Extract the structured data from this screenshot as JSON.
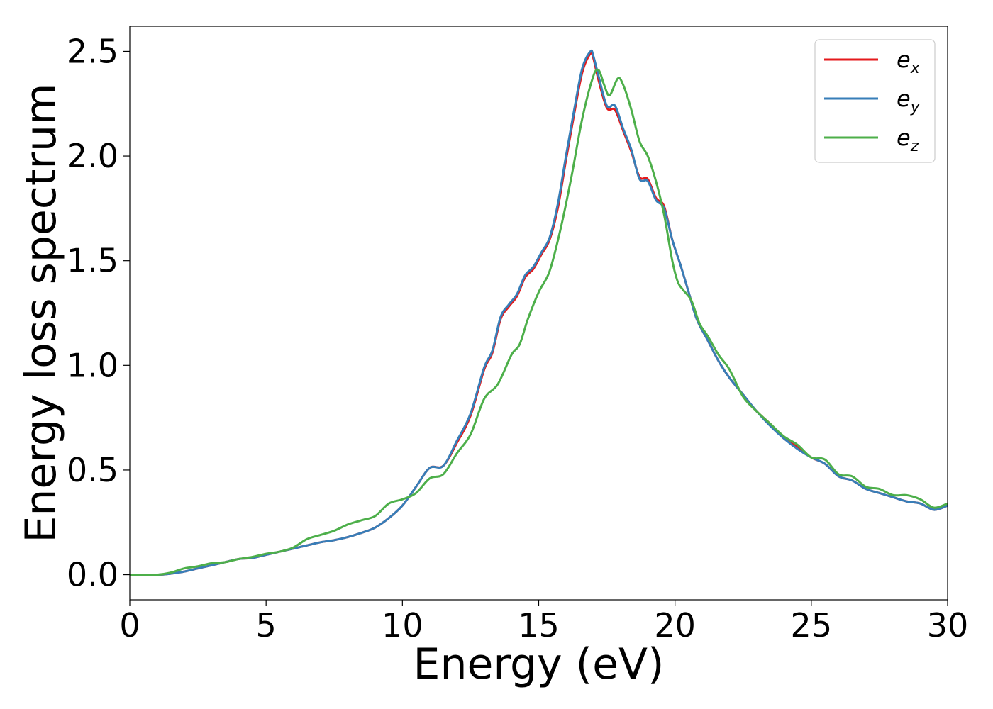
{
  "chart_data": {
    "type": "line",
    "title": "",
    "xlabel": "Energy (eV)",
    "ylabel": "Energy loss spectrum",
    "xlim": [
      0,
      30
    ],
    "ylim": [
      -0.12,
      2.62
    ],
    "xticks": [
      0,
      5,
      10,
      15,
      20,
      25,
      30
    ],
    "xtick_labels": [
      "0",
      "5",
      "10",
      "15",
      "20",
      "25",
      "30"
    ],
    "yticks": [
      0.0,
      0.5,
      1.0,
      1.5,
      2.0,
      2.5
    ],
    "ytick_labels": [
      "0.0",
      "0.5",
      "1.0",
      "1.5",
      "2.0",
      "2.5"
    ],
    "grid": false,
    "legend_position": "top-right",
    "series": [
      {
        "name": "e_x",
        "legend_base": "e",
        "legend_sub": "x",
        "color": "#e41a1c",
        "x": [
          0,
          1,
          1.5,
          2,
          2.5,
          3,
          3.5,
          4,
          4.5,
          5,
          5.5,
          6,
          6.5,
          7,
          7.5,
          8,
          8.5,
          9,
          9.5,
          10,
          10.5,
          11,
          11.5,
          12,
          12.5,
          13,
          13.3,
          13.6,
          13.9,
          14.2,
          14.5,
          14.8,
          15.1,
          15.4,
          15.7,
          16.0,
          16.3,
          16.6,
          16.9,
          17.0,
          17.2,
          17.5,
          17.8,
          18.1,
          18.4,
          18.7,
          19.0,
          19.3,
          19.6,
          19.9,
          20.2,
          20.5,
          20.8,
          21.2,
          21.6,
          22,
          22.5,
          23,
          23.5,
          24,
          24.5,
          25,
          25.5,
          26,
          26.5,
          27,
          27.5,
          28,
          28.5,
          29,
          29.5,
          30
        ],
        "y": [
          0.0,
          0.0,
          0.005,
          0.015,
          0.03,
          0.045,
          0.06,
          0.075,
          0.08,
          0.095,
          0.11,
          0.125,
          0.14,
          0.155,
          0.165,
          0.18,
          0.2,
          0.225,
          0.27,
          0.33,
          0.42,
          0.51,
          0.52,
          0.63,
          0.76,
          0.98,
          1.06,
          1.22,
          1.28,
          1.33,
          1.42,
          1.46,
          1.53,
          1.6,
          1.75,
          1.98,
          2.2,
          2.4,
          2.49,
          2.47,
          2.36,
          2.23,
          2.22,
          2.12,
          2.02,
          1.9,
          1.89,
          1.8,
          1.76,
          1.6,
          1.48,
          1.35,
          1.22,
          1.12,
          1.02,
          0.94,
          0.86,
          0.78,
          0.72,
          0.65,
          0.61,
          0.56,
          0.53,
          0.47,
          0.45,
          0.41,
          0.39,
          0.37,
          0.35,
          0.34,
          0.31,
          0.33
        ]
      },
      {
        "name": "e_y",
        "legend_base": "e",
        "legend_sub": "y",
        "color": "#377eb8",
        "x": [
          0,
          1,
          1.5,
          2,
          2.5,
          3,
          3.5,
          4,
          4.5,
          5,
          5.5,
          6,
          6.5,
          7,
          7.5,
          8,
          8.5,
          9,
          9.5,
          10,
          10.5,
          11,
          11.5,
          12,
          12.5,
          13,
          13.3,
          13.6,
          13.9,
          14.2,
          14.5,
          14.8,
          15.1,
          15.4,
          15.7,
          16.0,
          16.3,
          16.6,
          16.9,
          17.0,
          17.2,
          17.5,
          17.8,
          18.1,
          18.4,
          18.7,
          19.0,
          19.3,
          19.6,
          19.9,
          20.2,
          20.5,
          20.8,
          21.2,
          21.6,
          22,
          22.5,
          23,
          23.5,
          24,
          24.5,
          25,
          25.5,
          26,
          26.5,
          27,
          27.5,
          28,
          28.5,
          29,
          29.5,
          30
        ],
        "y": [
          0.0,
          0.0,
          0.005,
          0.015,
          0.03,
          0.045,
          0.06,
          0.075,
          0.08,
          0.095,
          0.11,
          0.125,
          0.14,
          0.155,
          0.165,
          0.18,
          0.2,
          0.225,
          0.27,
          0.33,
          0.42,
          0.51,
          0.52,
          0.64,
          0.77,
          0.99,
          1.07,
          1.23,
          1.29,
          1.34,
          1.43,
          1.47,
          1.54,
          1.61,
          1.77,
          2.0,
          2.22,
          2.42,
          2.5,
          2.48,
          2.38,
          2.24,
          2.24,
          2.13,
          2.03,
          1.89,
          1.88,
          1.79,
          1.75,
          1.6,
          1.48,
          1.35,
          1.22,
          1.12,
          1.02,
          0.94,
          0.86,
          0.78,
          0.71,
          0.65,
          0.6,
          0.56,
          0.53,
          0.47,
          0.45,
          0.41,
          0.39,
          0.37,
          0.35,
          0.34,
          0.31,
          0.33
        ]
      },
      {
        "name": "e_z",
        "legend_base": "e",
        "legend_sub": "z",
        "color": "#4daf4a",
        "x": [
          0,
          1,
          1.5,
          2,
          2.5,
          3,
          3.5,
          4,
          4.5,
          5,
          5.5,
          6,
          6.5,
          7,
          7.5,
          8,
          8.5,
          9,
          9.5,
          10,
          10.5,
          11,
          11.5,
          12,
          12.5,
          13,
          13.5,
          14,
          14.3,
          14.6,
          15.0,
          15.4,
          15.8,
          16.2,
          16.6,
          17.0,
          17.2,
          17.4,
          17.6,
          17.9,
          18.1,
          18.4,
          18.7,
          19.0,
          19.3,
          19.6,
          19.9,
          20.1,
          20.3,
          20.6,
          20.9,
          21.2,
          21.6,
          22,
          22.5,
          23,
          23.5,
          24,
          24.5,
          25,
          25.5,
          26,
          26.5,
          27,
          27.5,
          28,
          28.5,
          29,
          29.5,
          30
        ],
        "y": [
          0.0,
          0.0,
          0.01,
          0.03,
          0.04,
          0.055,
          0.06,
          0.075,
          0.085,
          0.1,
          0.11,
          0.13,
          0.17,
          0.19,
          0.21,
          0.24,
          0.26,
          0.28,
          0.34,
          0.36,
          0.39,
          0.46,
          0.48,
          0.58,
          0.67,
          0.84,
          0.91,
          1.05,
          1.1,
          1.22,
          1.35,
          1.45,
          1.65,
          1.9,
          2.18,
          2.38,
          2.41,
          2.34,
          2.29,
          2.37,
          2.34,
          2.22,
          2.07,
          2.0,
          1.88,
          1.72,
          1.5,
          1.4,
          1.36,
          1.31,
          1.2,
          1.14,
          1.05,
          0.98,
          0.85,
          0.78,
          0.72,
          0.66,
          0.62,
          0.56,
          0.55,
          0.48,
          0.47,
          0.42,
          0.41,
          0.38,
          0.38,
          0.36,
          0.32,
          0.34
        ]
      }
    ]
  }
}
